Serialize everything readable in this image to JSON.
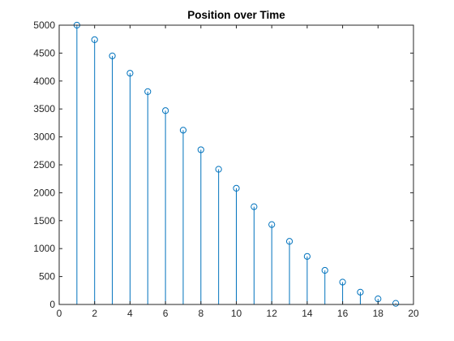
{
  "chart_data": {
    "type": "stem",
    "title": "Position over Time",
    "xlabel": "",
    "ylabel": "",
    "xlim": [
      0,
      20
    ],
    "ylim": [
      0,
      5000
    ],
    "xticks": [
      0,
      2,
      4,
      6,
      8,
      10,
      12,
      14,
      16,
      18,
      20
    ],
    "yticks": [
      0,
      500,
      1000,
      1500,
      2000,
      2500,
      3000,
      3500,
      4000,
      4500,
      5000
    ],
    "x": [
      1,
      2,
      3,
      4,
      5,
      6,
      7,
      8,
      9,
      10,
      11,
      12,
      13,
      14,
      15,
      16,
      17,
      18,
      19
    ],
    "y": [
      5000,
      4740,
      4450,
      4140,
      3810,
      3470,
      3120,
      2770,
      2420,
      2080,
      1750,
      1430,
      1130,
      860,
      610,
      400,
      220,
      100,
      20
    ],
    "marker": "circle-open",
    "grid": false,
    "legend": "none",
    "series_color": "#0072BD",
    "axis_color": "#262626"
  }
}
